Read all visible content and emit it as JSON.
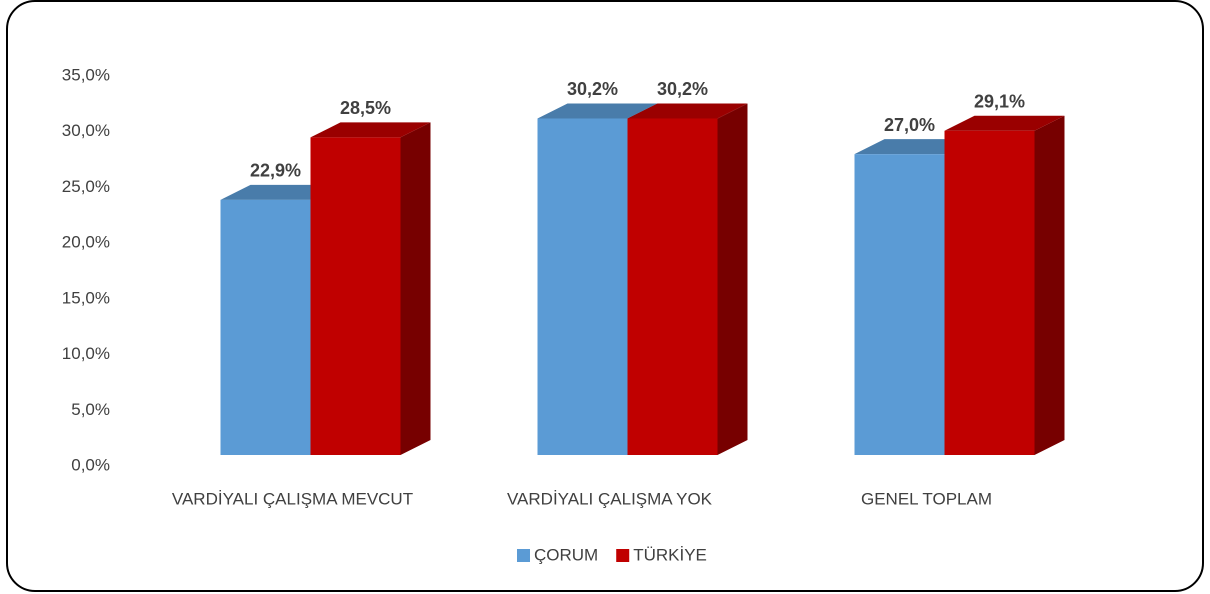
{
  "chart_data": {
    "type": "bar3d",
    "categories": [
      "VARDİYALI ÇALIŞMA MEVCUT",
      "VARDİYALI ÇALIŞMA YOK",
      "GENEL TOPLAM"
    ],
    "series": [
      {
        "name": "ÇORUM",
        "color": "#5b9bd5",
        "values": [
          22.9,
          30.2,
          27.0
        ],
        "value_labels": [
          "22,9%",
          "30,2%",
          "27,0%"
        ]
      },
      {
        "name": "TÜRKİYE",
        "color": "#c00000",
        "values": [
          28.5,
          30.2,
          29.1
        ],
        "value_labels": [
          "28,5%",
          "30,2%",
          "29,1%"
        ]
      }
    ],
    "ylim": [
      0,
      35
    ],
    "yticks": [
      {
        "value": 0,
        "label": "0,0%"
      },
      {
        "value": 5,
        "label": "5,0%"
      },
      {
        "value": 10,
        "label": "10,0%"
      },
      {
        "value": 15,
        "label": "15,0%"
      },
      {
        "value": 20,
        "label": "20,0%"
      },
      {
        "value": 25,
        "label": "25,0%"
      },
      {
        "value": 30,
        "label": "30,0%"
      },
      {
        "value": 35,
        "label": "35,0%"
      }
    ],
    "legend": "bottom"
  }
}
